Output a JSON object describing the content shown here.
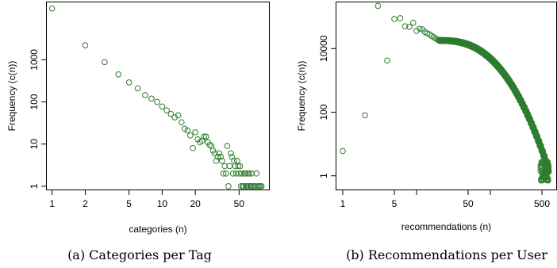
{
  "chart_data": [
    {
      "type": "scatter",
      "caption": "(a) Categories per Tag",
      "xlabel": "categories (n)",
      "ylabel": "Frequency (c(n))",
      "xscale": "log",
      "yscale": "log",
      "xlim": [
        0.88,
        95
      ],
      "ylim": [
        0.8,
        24000
      ],
      "xticks": [
        1,
        2,
        5,
        10,
        20,
        50
      ],
      "xtick_labels": [
        "1",
        "2",
        "5",
        "10",
        "20",
        "50"
      ],
      "yticks": [
        1,
        10,
        100,
        1000
      ],
      "ytick_labels": [
        "1",
        "10",
        "100",
        "1000"
      ],
      "marker_color": "#2e7d2e",
      "grid": false,
      "points": [
        [
          1,
          16500
        ],
        [
          2,
          2200
        ],
        [
          3,
          880
        ],
        [
          4,
          450
        ],
        [
          5,
          290
        ],
        [
          6,
          210
        ],
        [
          7,
          145
        ],
        [
          8,
          120
        ],
        [
          9,
          100
        ],
        [
          10,
          78
        ],
        [
          11,
          63
        ],
        [
          12,
          52
        ],
        [
          13,
          43
        ],
        [
          14,
          48
        ],
        [
          15,
          33
        ],
        [
          16,
          23
        ],
        [
          17,
          21
        ],
        [
          18,
          16
        ],
        [
          19,
          8
        ],
        [
          20,
          19
        ],
        [
          21,
          13
        ],
        [
          22,
          11
        ],
        [
          23,
          12
        ],
        [
          24,
          15
        ],
        [
          25,
          15
        ],
        [
          26,
          11
        ],
        [
          27,
          9.5
        ],
        [
          28,
          9
        ],
        [
          29,
          7
        ],
        [
          30,
          6
        ],
        [
          31,
          4
        ],
        [
          32,
          5
        ],
        [
          33,
          6
        ],
        [
          34,
          5
        ],
        [
          35,
          4
        ],
        [
          36,
          2
        ],
        [
          37,
          3
        ],
        [
          38,
          2
        ],
        [
          39,
          9
        ],
        [
          40,
          1
        ],
        [
          41,
          3
        ],
        [
          42,
          6
        ],
        [
          43,
          5
        ],
        [
          44,
          2
        ],
        [
          45,
          4
        ],
        [
          46,
          3
        ],
        [
          47,
          2
        ],
        [
          48,
          4
        ],
        [
          49,
          3
        ],
        [
          50,
          2
        ],
        [
          51,
          3
        ],
        [
          52,
          1
        ],
        [
          53,
          2
        ],
        [
          54,
          1
        ],
        [
          55,
          1
        ],
        [
          56,
          2
        ],
        [
          57,
          2
        ],
        [
          58,
          1
        ],
        [
          59,
          1
        ],
        [
          60,
          2
        ],
        [
          61,
          1
        ],
        [
          62,
          2
        ],
        [
          63,
          1
        ],
        [
          64,
          1
        ],
        [
          65,
          2
        ],
        [
          66,
          1
        ],
        [
          68,
          1
        ],
        [
          70,
          1
        ],
        [
          72,
          2
        ],
        [
          74,
          1
        ],
        [
          76,
          1
        ],
        [
          78,
          1
        ],
        [
          80,
          1
        ]
      ]
    },
    {
      "type": "scatter",
      "caption": "(b) Recommendations per User",
      "xlabel": "recommendations (n)",
      "ylabel": "Frequency (c(n))",
      "xscale": "log",
      "yscale": "log",
      "xlim": [
        0.8,
        800
      ],
      "ylim": [
        0.35,
        300000
      ],
      "xticks": [
        1,
        5,
        50,
        500
      ],
      "xtick_labels": [
        "1",
        "5",
        "50",
        "500"
      ],
      "xticks_minor": [
        10,
        100
      ],
      "yticks": [
        1,
        100,
        10000
      ],
      "ytick_labels": [
        "1",
        "100",
        "10000"
      ],
      "marker_color": "#2e7d2e",
      "grid": false,
      "points": [
        [
          1,
          6
        ],
        [
          2,
          80
        ],
        [
          3,
          220000
        ],
        [
          4,
          4200
        ],
        [
          5,
          85000
        ],
        [
          6,
          90000
        ],
        [
          7,
          50000
        ],
        [
          8,
          48000
        ],
        [
          9,
          65000
        ],
        [
          10,
          36000
        ],
        [
          11,
          42000
        ],
        [
          12,
          40000
        ],
        [
          13,
          33000
        ],
        [
          14,
          30000
        ],
        [
          15,
          28000
        ],
        [
          16,
          25000
        ],
        [
          17,
          23000
        ],
        [
          18,
          21000
        ],
        [
          19,
          19500
        ],
        [
          20,
          18000
        ]
      ],
      "trend": {
        "x_start": 20,
        "x_end": 620,
        "y_at_start": 18000,
        "y_at_end": 1.5
      }
    }
  ]
}
